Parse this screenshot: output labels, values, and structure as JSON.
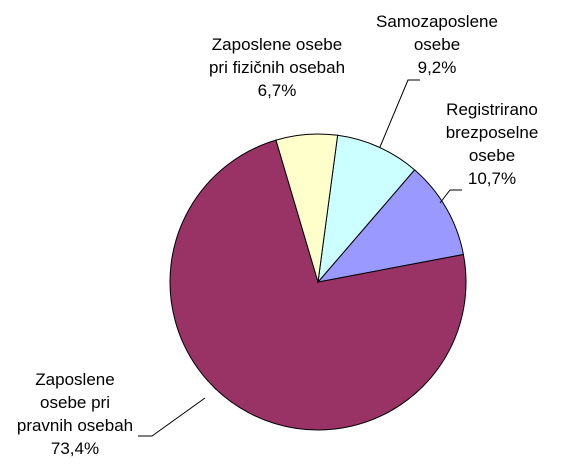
{
  "chart_data": {
    "type": "pie",
    "categories": [
      "Zaposlene osebe pri fizičnih osebah",
      "Samozaposlene osebe",
      "Registrirano brezposelne osebe",
      "Zaposlene osebe pri pravnih osebah"
    ],
    "values": [
      6.7,
      9.2,
      10.7,
      73.4
    ],
    "value_labels": [
      "6,7%",
      "9,2%",
      "10,7%",
      "73,4%"
    ],
    "colors": [
      "#FFFFCC",
      "#CCFFFF",
      "#9999FF",
      "#993366"
    ]
  }
}
